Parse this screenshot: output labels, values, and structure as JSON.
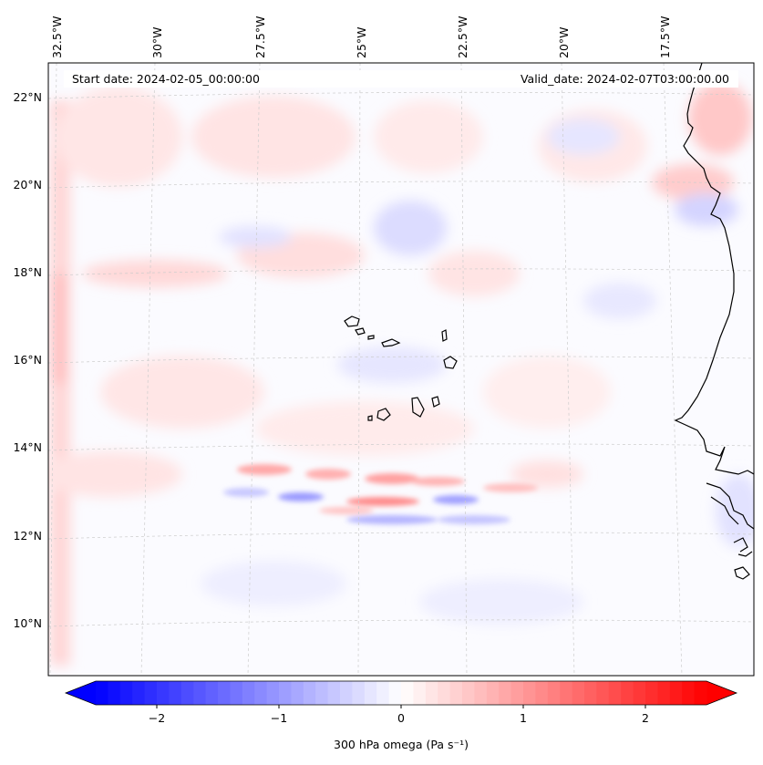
{
  "header": {
    "start_date": "Start date: 2024-02-05_00:00:00",
    "valid_date": "Valid_date: 2024-02-07T03:00:00.00"
  },
  "map": {
    "lon_labels": [
      "32.5°W",
      "30°W",
      "27.5°W",
      "25°W",
      "22.5°W",
      "20°W",
      "17.5°W"
    ],
    "lat_labels": [
      "22°N",
      "20°N",
      "18°N",
      "16°N",
      "14°N",
      "12°N",
      "10°N"
    ],
    "field": "300 hPa omega",
    "units": "Pa s-1",
    "features": [
      "Cape Verde islands",
      "West African coastline"
    ]
  },
  "colorbar": {
    "label": "300 hPa omega (Pa s⁻¹)",
    "ticks": [
      "−2",
      "−1",
      "0",
      "1",
      "2"
    ],
    "tick_values": [
      -2,
      -1,
      0,
      1,
      2
    ],
    "range": [
      -2.5,
      2.5
    ],
    "extend": "both",
    "colormap": "bwr",
    "neg_color": "#0000ff",
    "zero_color": "#ffffff",
    "pos_color": "#ff0000"
  },
  "colors": {
    "coastline": "#000000",
    "gridline": "#cccccc"
  }
}
